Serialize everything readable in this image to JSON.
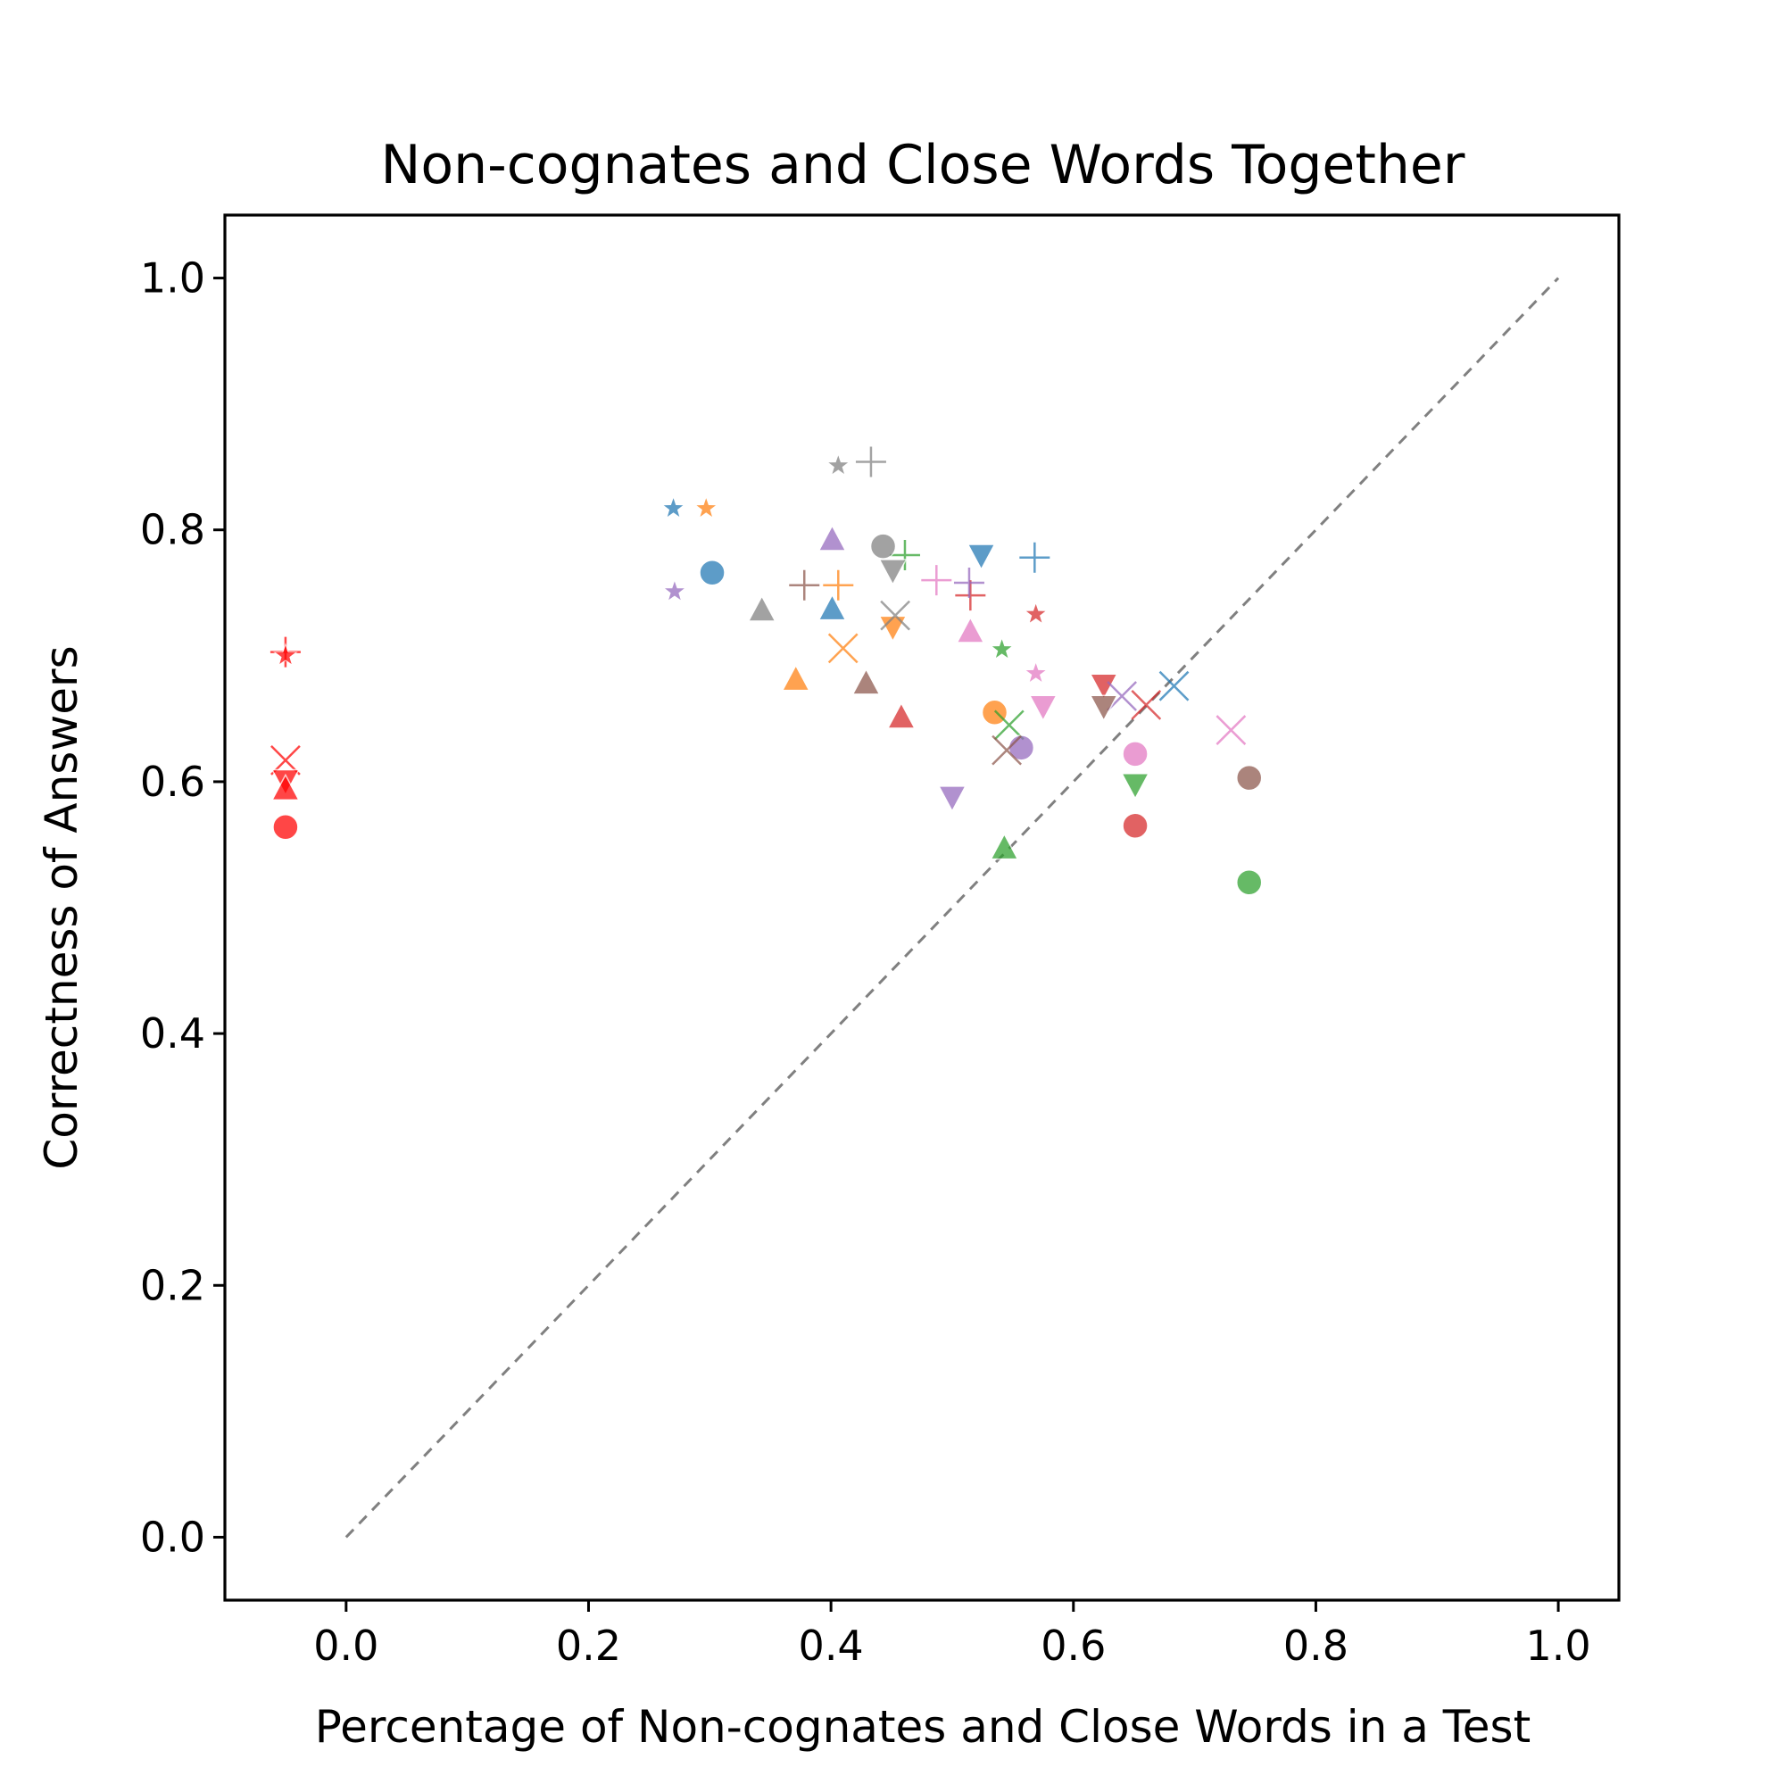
{
  "chart_data": {
    "type": "scatter",
    "title": "Non-cognates and Close Words Together",
    "xlabel": "Percentage of Non-cognates and Close Words in a Test",
    "ylabel": "Correctness of Answers",
    "xlim": [
      -0.1,
      1.05
    ],
    "ylim": [
      -0.05,
      1.05
    ],
    "xticks": [
      0.0,
      0.2,
      0.4,
      0.6,
      0.8,
      1.0
    ],
    "yticks": [
      0.0,
      0.2,
      0.4,
      0.6,
      0.8,
      1.0
    ],
    "xtick_labels": [
      "0.0",
      "0.2",
      "0.4",
      "0.6",
      "0.8",
      "1.0"
    ],
    "ytick_labels": [
      "0.0",
      "0.2",
      "0.4",
      "0.6",
      "0.8",
      "1.0"
    ],
    "grid": false,
    "legend": "none",
    "reference_line": {
      "style": "dashed",
      "color": "#808080",
      "from": [
        0.0,
        0.0
      ],
      "to": [
        1.0,
        1.0
      ]
    },
    "colors": {
      "blue": "#1f77b4",
      "orange": "#ff7f0e",
      "green": "#2ca02c",
      "red": "#d62728",
      "purple": "#9467bd",
      "brown": "#8c564b",
      "pink": "#e377c2",
      "gray": "#7f7f7f",
      "bright_red": "#ff0000"
    },
    "points": [
      {
        "x": -0.05,
        "y": 0.703,
        "marker": "plus",
        "color": "bright_red"
      },
      {
        "x": -0.05,
        "y": 0.7,
        "marker": "star",
        "color": "bright_red"
      },
      {
        "x": -0.05,
        "y": 0.617,
        "marker": "x",
        "color": "bright_red"
      },
      {
        "x": -0.05,
        "y": 0.601,
        "marker": "triangle_down",
        "color": "bright_red"
      },
      {
        "x": -0.05,
        "y": 0.594,
        "marker": "triangle_up",
        "color": "bright_red"
      },
      {
        "x": -0.05,
        "y": 0.564,
        "marker": "circle",
        "color": "bright_red"
      },
      {
        "x": 0.27,
        "y": 0.817,
        "marker": "star",
        "color": "blue"
      },
      {
        "x": 0.302,
        "y": 0.766,
        "marker": "circle",
        "color": "blue"
      },
      {
        "x": 0.401,
        "y": 0.737,
        "marker": "triangle_up",
        "color": "blue"
      },
      {
        "x": 0.524,
        "y": 0.78,
        "marker": "triangle_down",
        "color": "blue"
      },
      {
        "x": 0.568,
        "y": 0.778,
        "marker": "plus",
        "color": "blue"
      },
      {
        "x": 0.683,
        "y": 0.676,
        "marker": "x",
        "color": "blue"
      },
      {
        "x": 0.297,
        "y": 0.817,
        "marker": "star",
        "color": "orange"
      },
      {
        "x": 0.371,
        "y": 0.681,
        "marker": "triangle_up",
        "color": "orange"
      },
      {
        "x": 0.406,
        "y": 0.756,
        "marker": "plus",
        "color": "orange"
      },
      {
        "x": 0.41,
        "y": 0.706,
        "marker": "x",
        "color": "orange"
      },
      {
        "x": 0.451,
        "y": 0.723,
        "marker": "triangle_down",
        "color": "orange"
      },
      {
        "x": 0.535,
        "y": 0.655,
        "marker": "circle",
        "color": "orange"
      },
      {
        "x": 0.461,
        "y": 0.78,
        "marker": "plus",
        "color": "green"
      },
      {
        "x": 0.541,
        "y": 0.705,
        "marker": "star",
        "color": "green"
      },
      {
        "x": 0.547,
        "y": 0.645,
        "marker": "x",
        "color": "green"
      },
      {
        "x": 0.543,
        "y": 0.547,
        "marker": "triangle_up",
        "color": "green"
      },
      {
        "x": 0.651,
        "y": 0.598,
        "marker": "triangle_down",
        "color": "green"
      },
      {
        "x": 0.745,
        "y": 0.52,
        "marker": "circle",
        "color": "green"
      },
      {
        "x": 0.458,
        "y": 0.651,
        "marker": "triangle_up",
        "color": "red"
      },
      {
        "x": 0.515,
        "y": 0.748,
        "marker": "plus",
        "color": "red"
      },
      {
        "x": 0.569,
        "y": 0.733,
        "marker": "star",
        "color": "red"
      },
      {
        "x": 0.625,
        "y": 0.677,
        "marker": "triangle_down",
        "color": "red"
      },
      {
        "x": 0.66,
        "y": 0.661,
        "marker": "x",
        "color": "red"
      },
      {
        "x": 0.651,
        "y": 0.565,
        "marker": "circle",
        "color": "red"
      },
      {
        "x": 0.271,
        "y": 0.751,
        "marker": "star",
        "color": "purple"
      },
      {
        "x": 0.401,
        "y": 0.792,
        "marker": "triangle_up",
        "color": "purple"
      },
      {
        "x": 0.514,
        "y": 0.758,
        "marker": "plus",
        "color": "purple"
      },
      {
        "x": 0.5,
        "y": 0.588,
        "marker": "triangle_down",
        "color": "purple"
      },
      {
        "x": 0.557,
        "y": 0.627,
        "marker": "circle",
        "color": "purple"
      },
      {
        "x": 0.64,
        "y": 0.668,
        "marker": "x",
        "color": "purple"
      },
      {
        "x": 0.378,
        "y": 0.756,
        "marker": "plus",
        "color": "brown"
      },
      {
        "x": 0.429,
        "y": 0.678,
        "marker": "triangle_up",
        "color": "brown"
      },
      {
        "x": 0.545,
        "y": 0.625,
        "marker": "x",
        "color": "brown"
      },
      {
        "x": 0.625,
        "y": 0.66,
        "marker": "triangle_down",
        "color": "brown"
      },
      {
        "x": 0.745,
        "y": 0.603,
        "marker": "circle",
        "color": "brown"
      },
      {
        "x": 0.487,
        "y": 0.76,
        "marker": "plus",
        "color": "pink"
      },
      {
        "x": 0.515,
        "y": 0.719,
        "marker": "triangle_up",
        "color": "pink"
      },
      {
        "x": 0.569,
        "y": 0.686,
        "marker": "star",
        "color": "pink"
      },
      {
        "x": 0.575,
        "y": 0.66,
        "marker": "triangle_down",
        "color": "pink"
      },
      {
        "x": 0.651,
        "y": 0.622,
        "marker": "circle",
        "color": "pink"
      },
      {
        "x": 0.73,
        "y": 0.641,
        "marker": "x",
        "color": "pink"
      },
      {
        "x": 0.406,
        "y": 0.851,
        "marker": "star",
        "color": "gray"
      },
      {
        "x": 0.433,
        "y": 0.854,
        "marker": "plus",
        "color": "gray"
      },
      {
        "x": 0.343,
        "y": 0.736,
        "marker": "triangle_up",
        "color": "gray"
      },
      {
        "x": 0.443,
        "y": 0.787,
        "marker": "circle",
        "color": "gray"
      },
      {
        "x": 0.451,
        "y": 0.768,
        "marker": "triangle_down",
        "color": "gray"
      },
      {
        "x": 0.453,
        "y": 0.732,
        "marker": "x",
        "color": "gray"
      }
    ]
  }
}
